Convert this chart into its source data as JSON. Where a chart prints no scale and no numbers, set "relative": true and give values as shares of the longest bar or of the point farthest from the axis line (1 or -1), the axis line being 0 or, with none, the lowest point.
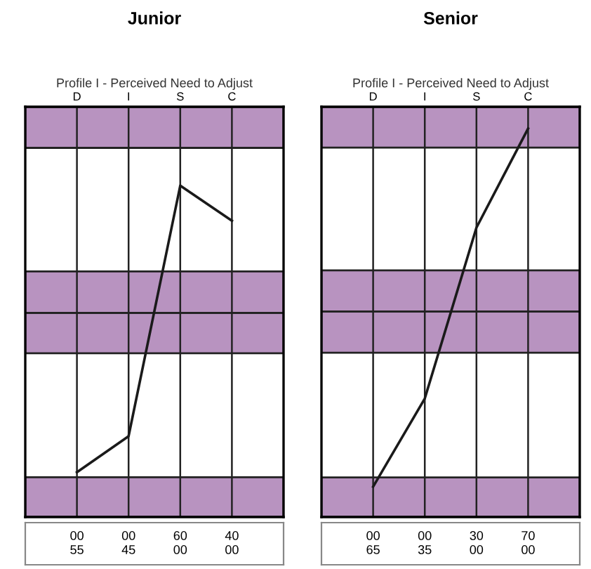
{
  "chart_data": [
    {
      "type": "line",
      "title": "Junior",
      "subtitle": "Profile I - Perceived Need to Adjust",
      "categories": [
        "D",
        "I",
        "S",
        "C"
      ],
      "relative": true,
      "series": [
        {
          "color": "#1a1a1a",
          "values": [
            0.135,
            0.244,
            1,
            0.894
          ]
        }
      ],
      "bands": [
        {
          "axis": "y",
          "from": 0,
          "to": 0.12,
          "color": "#b893c0"
        },
        {
          "axis": "y",
          "from": 0.494,
          "to": 0.616,
          "color": "#b893c0"
        },
        {
          "axis": "y",
          "from": 0.616,
          "to": 0.741,
          "color": "#b893c0"
        },
        {
          "axis": "y",
          "from": 1.114,
          "to": 1.238,
          "color": "#b893c0"
        }
      ],
      "grid": "x",
      "legend": false,
      "marker": "none",
      "line_style": "solid",
      "tick_labels": "x",
      "annotations": [
        "00 00 60 40",
        "55 45 00 00"
      ]
    },
    {
      "type": "line",
      "title": "Senior",
      "subtitle": "Profile I - Perceived Need to Adjust",
      "categories": [
        "D",
        "I",
        "S",
        "C"
      ],
      "relative": true,
      "series": [
        {
          "color": "#1a1a1a",
          "values": [
            0.078,
            0.305,
            0.745,
            1
          ]
        }
      ],
      "bands": [
        {
          "axis": "y",
          "from": 0,
          "to": 0.102,
          "color": "#b893c0"
        },
        {
          "axis": "y",
          "from": 0.423,
          "to": 0.529,
          "color": "#b893c0"
        },
        {
          "axis": "y",
          "from": 0.529,
          "to": 0.635,
          "color": "#b893c0"
        },
        {
          "axis": "y",
          "from": 0.951,
          "to": 1.056,
          "color": "#b893c0"
        }
      ],
      "grid": "x",
      "legend": false,
      "marker": "none",
      "line_style": "solid",
      "tick_labels": "x",
      "annotations": [
        "00 00 30 70",
        "65 35 00 00"
      ]
    }
  ]
}
